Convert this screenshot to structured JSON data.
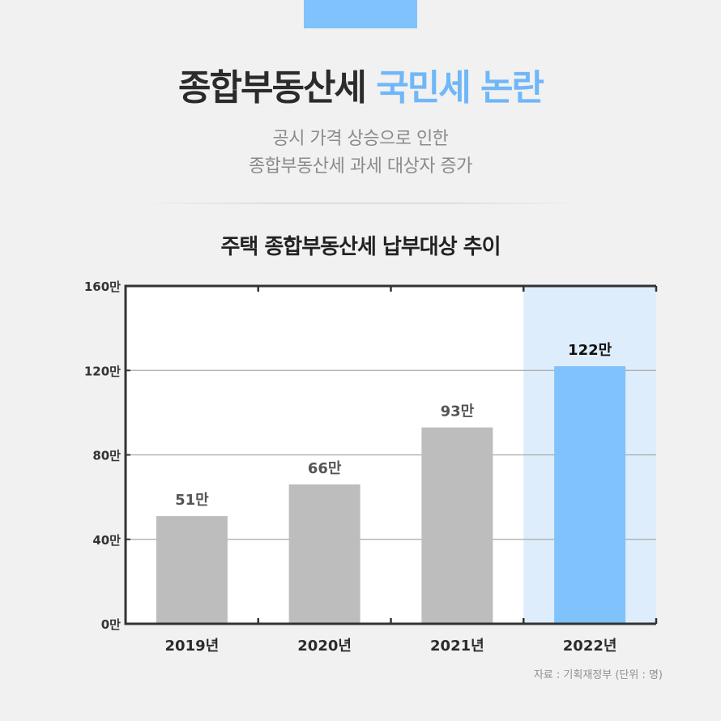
{
  "header": {
    "title_main": "종합부동산세",
    "title_accent": "국민세 논란",
    "subtitle_lines": [
      "공시 가격 상승으로 인한",
      "종합부동산세 과세 대상자 증가"
    ]
  },
  "colors": {
    "accent": "#80c2fb",
    "bar_default": "#bdbdbd",
    "bar_highlight": "#80c2fb",
    "highlight_bg": "#deedfc"
  },
  "chart_data": {
    "type": "bar",
    "title": "주택 종합부동산세 납부대상 추이",
    "categories": [
      "2019년",
      "2020년",
      "2021년",
      "2022년"
    ],
    "values": [
      51,
      66,
      93,
      122
    ],
    "value_labels": [
      "51만",
      "66만",
      "93만",
      "122만"
    ],
    "highlight_index": 3,
    "ylim": [
      0,
      160
    ],
    "yticks": [
      0,
      40,
      80,
      120,
      160
    ],
    "ytick_labels": [
      "0만",
      "40만",
      "80만",
      "120만",
      "160만"
    ],
    "xlabel": "",
    "ylabel": "",
    "grid": true
  },
  "footer": {
    "source": "자료 : 기획재정부 (단위 : 명)"
  }
}
